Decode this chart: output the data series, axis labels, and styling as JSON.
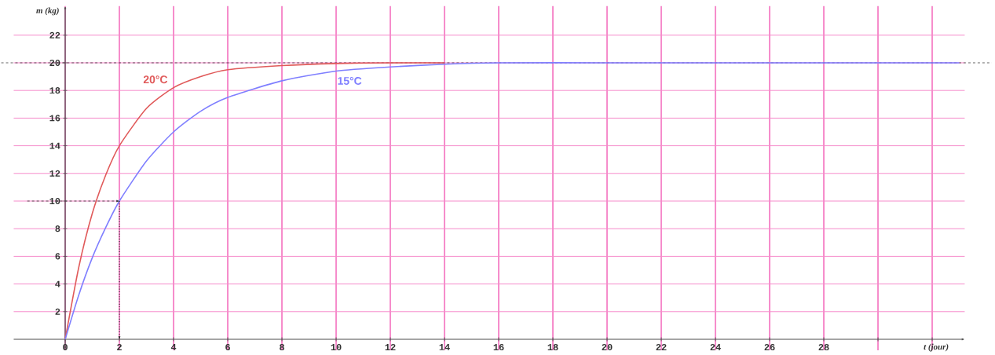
{
  "chart_data": {
    "type": "line",
    "xlabel": "t (jour)",
    "ylabel": "m (kg)",
    "x": [
      0,
      0.5,
      1,
      1.5,
      2,
      3,
      4,
      5,
      6,
      8,
      10,
      12,
      14,
      16,
      20,
      25,
      33
    ],
    "series": [
      {
        "name": "20°C",
        "color": "#e05a5a",
        "x": [
          0,
          0.5,
          1,
          1.5,
          2,
          3,
          4,
          5,
          6,
          8,
          10,
          12,
          14
        ],
        "values": [
          0,
          5.2,
          9.1,
          11.9,
          14,
          16.7,
          18.2,
          19,
          19.5,
          19.8,
          19.95,
          20,
          20
        ]
      },
      {
        "name": "15°C",
        "color": "#7f7fff",
        "values": [
          0,
          3.2,
          5.9,
          8.1,
          10,
          12.9,
          15,
          16.5,
          17.5,
          18.7,
          19.4,
          19.7,
          19.9,
          20,
          20,
          20,
          20
        ]
      }
    ],
    "xlim": [
      -1.9,
      33.2
    ],
    "ylim": [
      -0.8,
      24.1
    ],
    "xticks": [
      0,
      2,
      4,
      6,
      8,
      10,
      12,
      14,
      16,
      18,
      20,
      22,
      24,
      26,
      28,
      {
        "value": 30,
        "label": null
      },
      {
        "value": 32,
        "label": null
      }
    ],
    "yticks": [
      2,
      4,
      6,
      8,
      10,
      12,
      14,
      16,
      18,
      20,
      22
    ],
    "grid": true,
    "marker": "none",
    "line_style": "solid",
    "ref_lines": [
      {
        "axis": "y",
        "value": 20,
        "color": "#000000",
        "line_style": "dashed"
      }
    ]
  }
}
